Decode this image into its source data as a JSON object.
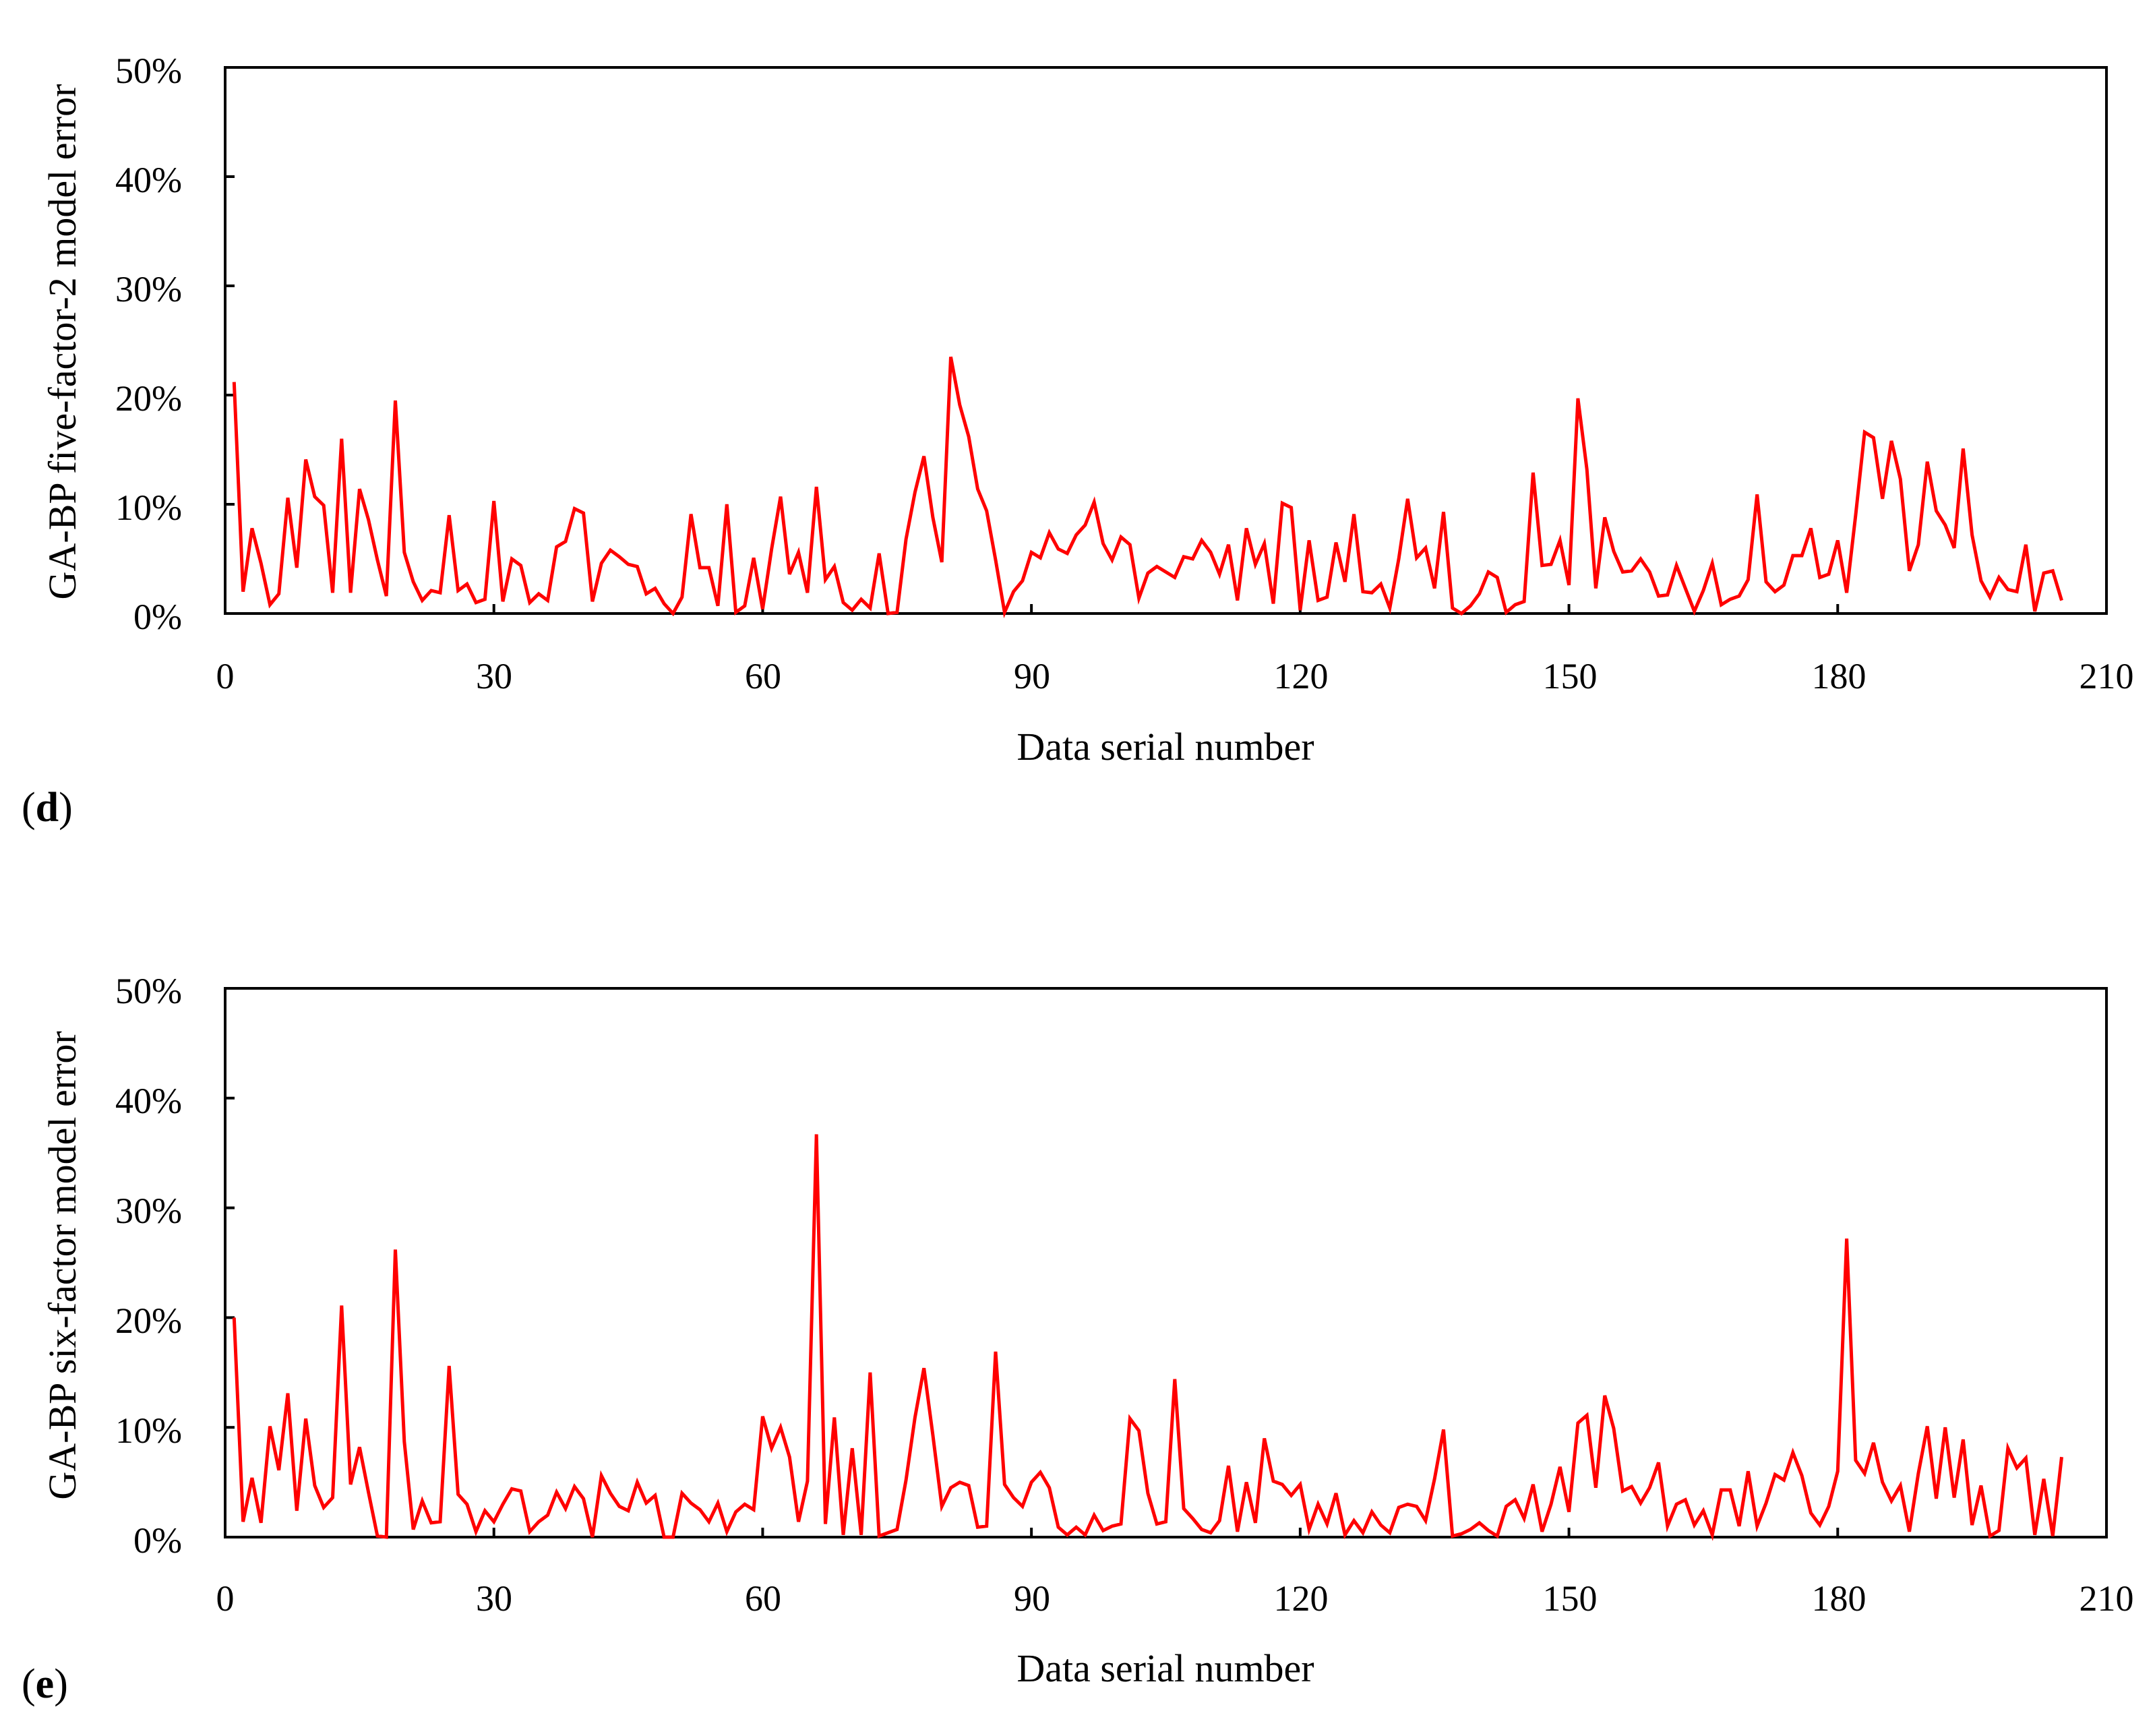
{
  "colors": {
    "series": "#ff0000",
    "axis": "#000000",
    "background": "#ffffff"
  },
  "chart_data": [
    {
      "type": "line",
      "panel_label": "d",
      "title": "",
      "xlabel": "Data serial number",
      "ylabel": "GA-BP five-factor-2 model error",
      "xlim": [
        0,
        210
      ],
      "ylim": [
        0,
        50
      ],
      "xticks": [
        0,
        30,
        60,
        90,
        120,
        150,
        180,
        210
      ],
      "yticks": [
        0,
        10,
        20,
        30,
        40,
        50
      ],
      "xtick_labels": [
        "0",
        "30",
        "60",
        "90",
        "120",
        "150",
        "180",
        "210"
      ],
      "ytick_labels": [
        "0%",
        "10%",
        "20%",
        "30%",
        "40%",
        "50%"
      ],
      "grid": false,
      "series": [
        {
          "name": "GA-BP five-factor-2 model error",
          "x_start": 1,
          "values": [
            21.2,
            2.0,
            7.8,
            4.6,
            0.8,
            1.8,
            10.6,
            4.2,
            14.1,
            10.7,
            9.9,
            1.9,
            16.0,
            1.9,
            11.4,
            8.6,
            4.9,
            1.6,
            19.5,
            5.6,
            2.9,
            1.2,
            2.1,
            1.9,
            9.0,
            2.1,
            2.7,
            1.0,
            1.3,
            10.3,
            1.1,
            5.0,
            4.4,
            1.0,
            1.8,
            1.2,
            6.1,
            6.6,
            9.6,
            9.2,
            1.1,
            4.6,
            5.8,
            5.2,
            4.5,
            4.3,
            1.8,
            2.3,
            0.9,
            0.0,
            1.5,
            9.1,
            4.2,
            4.2,
            0.7,
            10.0,
            0.1,
            0.7,
            5.1,
            0.4,
            5.9,
            10.7,
            3.6,
            5.6,
            1.9,
            11.6,
            3.1,
            4.3,
            1.0,
            0.3,
            1.3,
            0.5,
            5.5,
            0.0,
            0.1,
            6.8,
            11.1,
            14.4,
            8.8,
            4.7,
            23.5,
            19.1,
            16.2,
            11.4,
            9.4,
            4.9,
            0.1,
            2.0,
            3.0,
            5.6,
            5.1,
            7.4,
            5.9,
            5.5,
            7.2,
            8.1,
            10.2,
            6.4,
            4.9,
            7.0,
            6.3,
            1.4,
            3.7,
            4.3,
            3.8,
            3.3,
            5.2,
            5.0,
            6.7,
            5.6,
            3.6,
            6.3,
            1.2,
            7.8,
            4.5,
            6.4,
            0.9,
            10.1,
            9.7,
            0.3,
            6.7,
            1.2,
            1.5,
            6.5,
            2.9,
            9.1,
            2.0,
            1.9,
            2.7,
            0.5,
            5.0,
            10.5,
            5.1,
            6.0,
            2.3,
            9.3,
            0.5,
            0.0,
            0.7,
            1.8,
            3.8,
            3.3,
            0.1,
            0.8,
            1.1,
            12.9,
            4.4,
            4.5,
            6.7,
            2.6,
            19.7,
            13.2,
            2.3,
            8.8,
            5.7,
            3.8,
            3.9,
            5.0,
            3.8,
            1.6,
            1.7,
            4.4,
            2.3,
            0.2,
            2.1,
            4.6,
            0.8,
            1.3,
            1.6,
            3.1,
            10.9,
            2.9,
            2.0,
            2.6,
            5.3,
            5.3,
            7.8,
            3.3,
            3.6,
            6.7,
            1.9,
            9.0,
            16.6,
            16.1,
            10.5,
            15.8,
            12.3,
            3.9,
            6.3,
            13.9,
            9.4,
            8.1,
            6.0,
            15.1,
            7.2,
            3.0,
            1.5,
            3.3,
            2.2,
            2.0,
            6.3,
            0.2,
            3.7,
            3.9,
            1.2
          ]
        }
      ]
    },
    {
      "type": "line",
      "panel_label": "e",
      "title": "",
      "xlabel": "Data serial number",
      "ylabel": "GA-BP six-factor model error",
      "xlim": [
        0,
        210
      ],
      "ylim": [
        0,
        50
      ],
      "xticks": [
        0,
        30,
        60,
        90,
        120,
        150,
        180,
        210
      ],
      "yticks": [
        0,
        10,
        20,
        30,
        40,
        50
      ],
      "xtick_labels": [
        "0",
        "30",
        "60",
        "90",
        "120",
        "150",
        "180",
        "210"
      ],
      "ytick_labels": [
        "0%",
        "10%",
        "20%",
        "30%",
        "40%",
        "50%"
      ],
      "grid": false,
      "series": [
        {
          "name": "GA-BP six-factor model error",
          "x_start": 1,
          "values": [
            20.0,
            1.4,
            5.4,
            1.3,
            10.1,
            6.1,
            13.1,
            2.4,
            10.8,
            4.7,
            2.7,
            3.6,
            21.1,
            4.8,
            8.2,
            4.1,
            0.1,
            0.0,
            26.2,
            8.7,
            0.7,
            3.3,
            1.3,
            1.4,
            15.6,
            3.9,
            3.0,
            0.5,
            2.4,
            1.4,
            3.0,
            4.4,
            4.2,
            0.5,
            1.4,
            2.0,
            4.1,
            2.6,
            4.6,
            3.5,
            0.0,
            5.6,
            4.0,
            2.8,
            2.4,
            5.0,
            3.1,
            3.8,
            0.0,
            0.0,
            4.0,
            3.1,
            2.5,
            1.4,
            3.1,
            0.5,
            2.3,
            3.0,
            2.5,
            11.0,
            8.1,
            10.0,
            7.3,
            1.4,
            5.1,
            36.7,
            1.2,
            10.9,
            0.2,
            8.1,
            0.2,
            15.0,
            0.1,
            0.4,
            0.7,
            5.2,
            10.9,
            15.4,
            9.3,
            2.8,
            4.5,
            5.0,
            4.7,
            0.9,
            1.0,
            16.9,
            4.8,
            3.6,
            2.8,
            5.0,
            5.9,
            4.5,
            0.9,
            0.2,
            0.9,
            0.2,
            2.0,
            0.6,
            1.0,
            1.2,
            10.8,
            9.7,
            4.0,
            1.2,
            1.4,
            14.4,
            2.6,
            1.7,
            0.7,
            0.4,
            1.5,
            6.5,
            0.5,
            5.0,
            1.3,
            9.0,
            5.1,
            4.8,
            3.8,
            4.8,
            0.7,
            3.0,
            1.2,
            4.0,
            0.2,
            1.5,
            0.4,
            2.3,
            1.1,
            0.4,
            2.7,
            3.0,
            2.8,
            1.5,
            5.3,
            9.8,
            0.1,
            0.3,
            0.7,
            1.3,
            0.6,
            0.1,
            2.8,
            3.4,
            1.7,
            4.8,
            0.5,
            3.0,
            6.4,
            2.3,
            10.4,
            11.1,
            4.5,
            12.9,
            9.9,
            4.2,
            4.6,
            3.1,
            4.5,
            6.8,
            1.0,
            3.0,
            3.4,
            1.1,
            2.4,
            0.2,
            4.3,
            4.3,
            1.0,
            6.0,
            1.0,
            3.1,
            5.7,
            5.2,
            7.7,
            5.6,
            2.2,
            1.1,
            2.8,
            6.0,
            27.2,
            7.0,
            5.8,
            8.6,
            5.0,
            3.3,
            4.7,
            0.5,
            5.8,
            10.1,
            3.5,
            10.0,
            3.6,
            8.9,
            1.1,
            4.7,
            0.1,
            0.6,
            8.1,
            6.3,
            7.2,
            0.2,
            5.3,
            0.1,
            7.3
          ]
        }
      ]
    }
  ]
}
